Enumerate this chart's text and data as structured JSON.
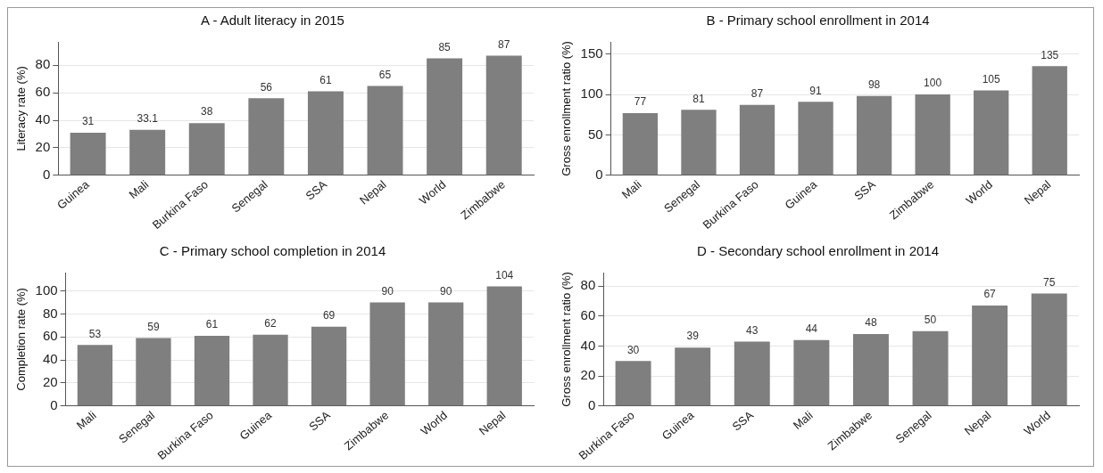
{
  "chart_data": [
    {
      "type": "bar",
      "title": "A - Adult literacy in 2015",
      "ylabel": "Literacy rate (%)",
      "categories": [
        "Guinea",
        "Mali",
        "Burkina Faso",
        "Senegal",
        "SSA",
        "Nepal",
        "World",
        "Zimbabwe"
      ],
      "values": [
        31,
        33.1,
        38,
        56,
        61,
        65,
        85,
        87
      ],
      "color": "#7f7f7f",
      "ylim": [
        0,
        97
      ],
      "yticks": [
        0,
        20,
        40,
        60,
        80
      ],
      "grid": "y",
      "data_labels": true
    },
    {
      "type": "bar",
      "title": "B - Primary school enrollment in 2014",
      "ylabel": "Gross enrollment ratio (%)",
      "categories": [
        "Mali",
        "Senegal",
        "Burkina Faso",
        "Guinea",
        "SSA",
        "Zimbabwe",
        "World",
        "Nepal"
      ],
      "values": [
        77,
        81,
        87,
        91,
        98,
        100,
        105,
        135
      ],
      "color": "#7f7f7f",
      "ylim": [
        0,
        165
      ],
      "yticks": [
        0,
        50,
        100,
        150
      ],
      "grid": "y",
      "data_labels": true
    },
    {
      "type": "bar",
      "title": "C - Primary school completion in 2014",
      "ylabel": "Completion rate (%)",
      "categories": [
        "Mali",
        "Senegal",
        "Burkina Faso",
        "Guinea",
        "SSA",
        "Zimbabwe",
        "World",
        "Nepal"
      ],
      "values": [
        53,
        59,
        61,
        62,
        69,
        90,
        90,
        104
      ],
      "color": "#7f7f7f",
      "ylim": [
        0,
        116
      ],
      "yticks": [
        0,
        20,
        40,
        60,
        80,
        100
      ],
      "grid": "y",
      "data_labels": true
    },
    {
      "type": "bar",
      "title": "D - Secondary school enrollment in 2014",
      "ylabel": "Gross enrollment ratio (%)",
      "categories": [
        "Burkina Faso",
        "Guinea",
        "SSA",
        "Mali",
        "Zimbabwe",
        "Senegal",
        "Nepal",
        "World"
      ],
      "values": [
        30,
        39,
        43,
        44,
        48,
        50,
        67,
        75
      ],
      "color": "#7f7f7f",
      "ylim": [
        0,
        89
      ],
      "yticks": [
        0,
        20,
        40,
        60,
        80
      ],
      "grid": "y",
      "data_labels": true
    }
  ]
}
